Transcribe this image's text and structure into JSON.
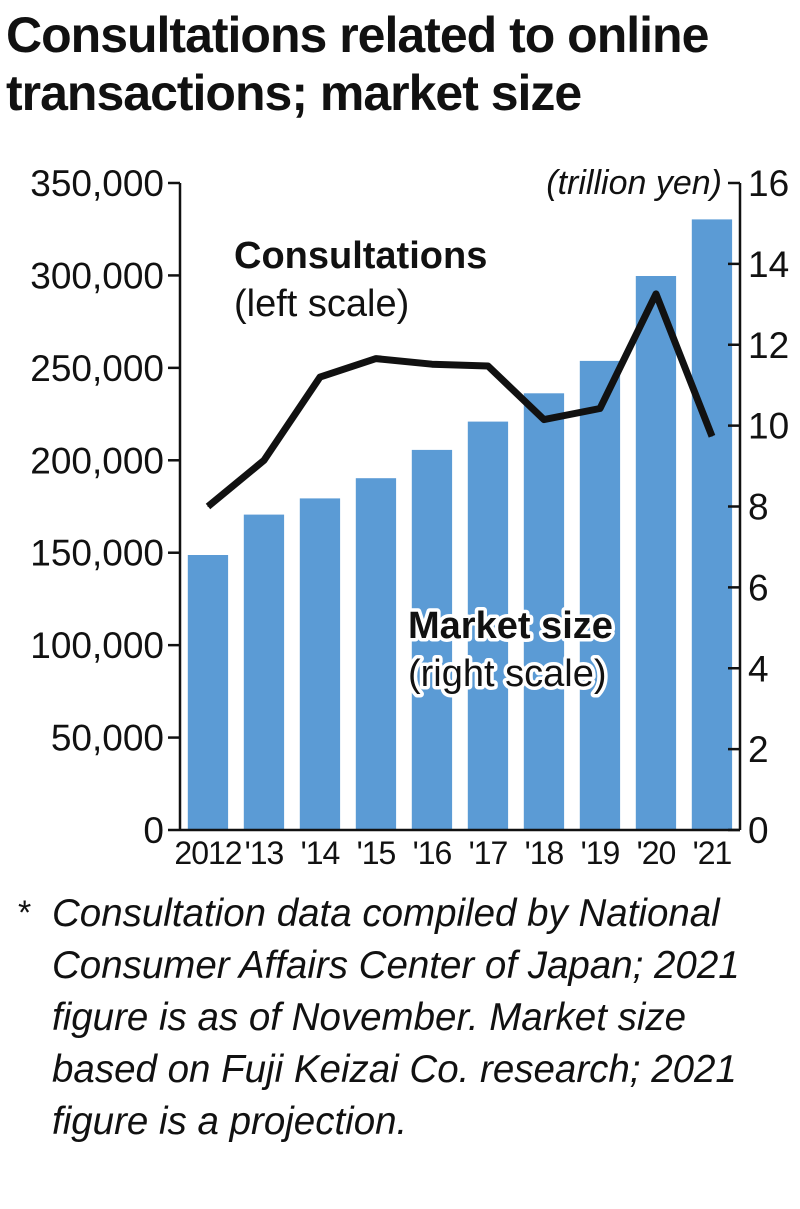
{
  "title": "Consultations related to online transactions; market size",
  "note": {
    "marker": "*",
    "text": "Consultation data compiled by National Consumer Affairs Center of Japan; 2021 figure is as of November. Market size based on Fuji Keizai Co. research; 2021 figure is a projection."
  },
  "colors": {
    "bar": "#5b9bd5",
    "line": "#111111",
    "axis": "#111111"
  },
  "chart_data": {
    "type": "bar",
    "categories": [
      "2012",
      "'13",
      "'14",
      "'15",
      "'16",
      "'17",
      "'18",
      "'19",
      "'20",
      "'21"
    ],
    "left_axis": {
      "range": [
        0,
        350000
      ],
      "ticks": [
        0,
        50000,
        100000,
        150000,
        200000,
        250000,
        300000,
        350000
      ],
      "tick_labels": [
        "0",
        "50,000",
        "100,000",
        "150,000",
        "200,000",
        "250,000",
        "300,000",
        "350,000"
      ]
    },
    "right_axis": {
      "range": [
        0,
        16
      ],
      "unit": "(trillion yen)",
      "ticks": [
        0,
        2,
        4,
        6,
        8,
        10,
        12,
        14,
        16
      ],
      "tick_labels": [
        "0",
        "2",
        "4",
        "6",
        "8",
        "10",
        "12",
        "14",
        "16"
      ]
    },
    "series": [
      {
        "name": "Market size",
        "label_sub": "(right scale)",
        "type": "bar",
        "axis": "right",
        "values": [
          6.8,
          7.8,
          8.2,
          8.7,
          9.4,
          10.1,
          10.8,
          11.6,
          13.7,
          15.1
        ]
      },
      {
        "name": "Consultations",
        "label_sub": "(left scale)",
        "type": "line",
        "axis": "left",
        "values": [
          175000,
          200000,
          245000,
          255000,
          252000,
          251000,
          222000,
          228000,
          290000,
          213000
        ]
      }
    ],
    "grid": false,
    "legend": "inline labels"
  }
}
